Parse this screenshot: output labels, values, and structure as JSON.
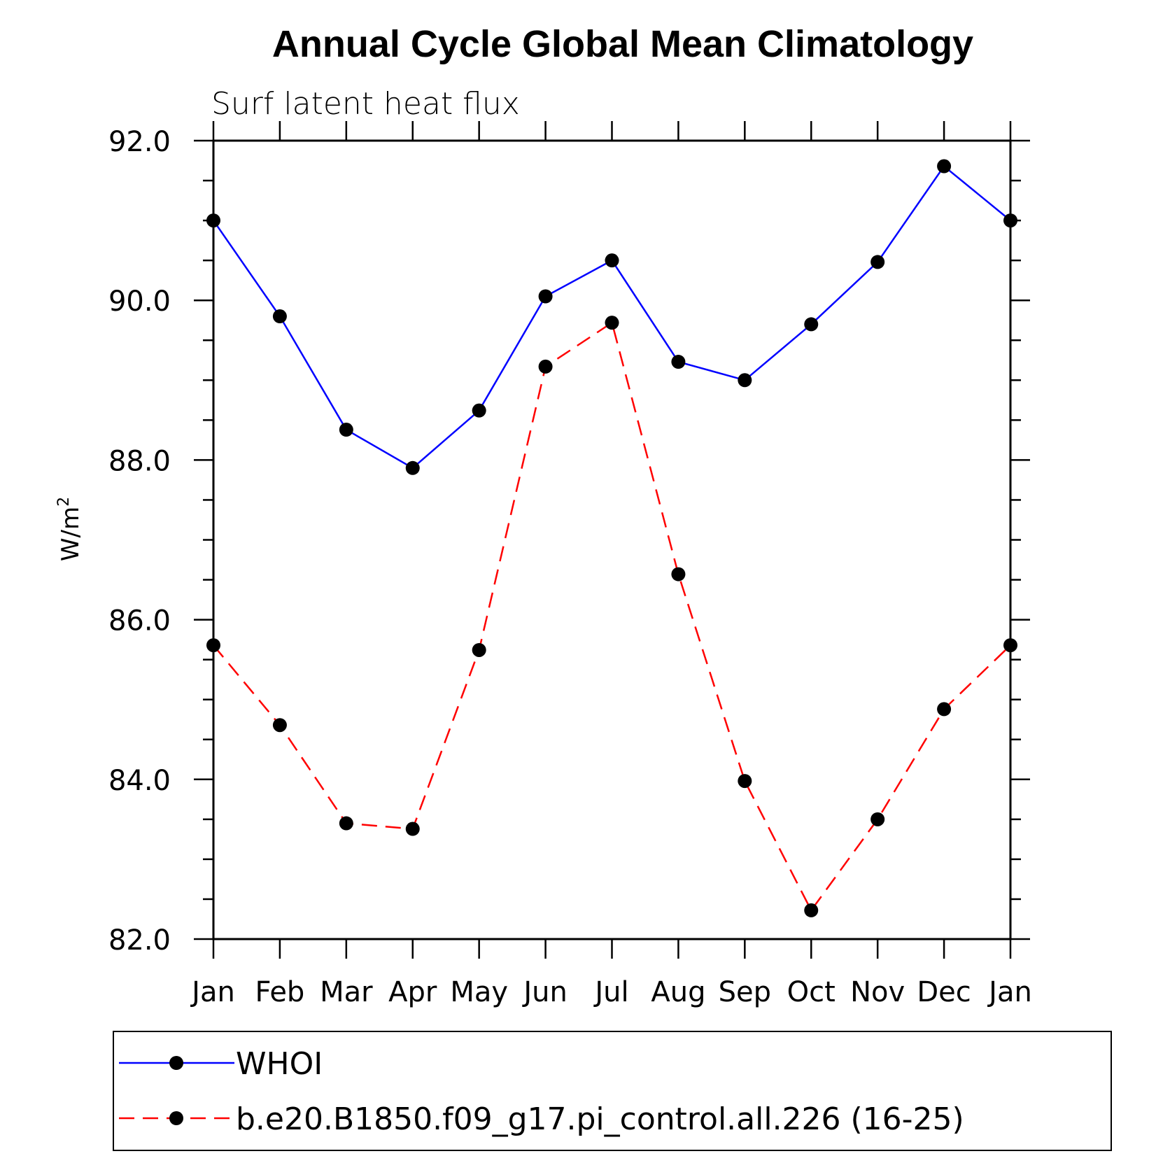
{
  "chart_data": {
    "type": "line",
    "title": "Annual Cycle Global Mean Climatology",
    "subtitle": "Surf latent heat flux",
    "xlabel": "",
    "ylabel": "W/m",
    "ylabel_superscript": "2",
    "categories": [
      "Jan",
      "Feb",
      "Mar",
      "Apr",
      "May",
      "Jun",
      "Jul",
      "Aug",
      "Sep",
      "Oct",
      "Nov",
      "Dec",
      "Jan"
    ],
    "ylim": [
      82.0,
      92.0
    ],
    "yticks": [
      "82.0",
      "84.0",
      "86.0",
      "88.0",
      "90.0",
      "92.0"
    ],
    "grid": false,
    "legend_position": "bottom",
    "series": [
      {
        "name": "WHOI",
        "color": "#0000ff",
        "dash": "solid",
        "values": [
          91.0,
          89.8,
          88.38,
          87.9,
          88.62,
          90.05,
          90.5,
          89.23,
          89.0,
          89.7,
          90.48,
          91.68,
          91.0
        ]
      },
      {
        "name": "b.e20.B1850.f09_g17.pi_control.all.226 (16-25)",
        "color": "#ff0000",
        "dash": "dashed",
        "values": [
          85.68,
          84.68,
          83.45,
          83.38,
          85.62,
          89.17,
          89.72,
          86.57,
          83.98,
          82.36,
          83.5,
          84.88,
          85.68
        ]
      }
    ],
    "marker_color": "#000000"
  }
}
